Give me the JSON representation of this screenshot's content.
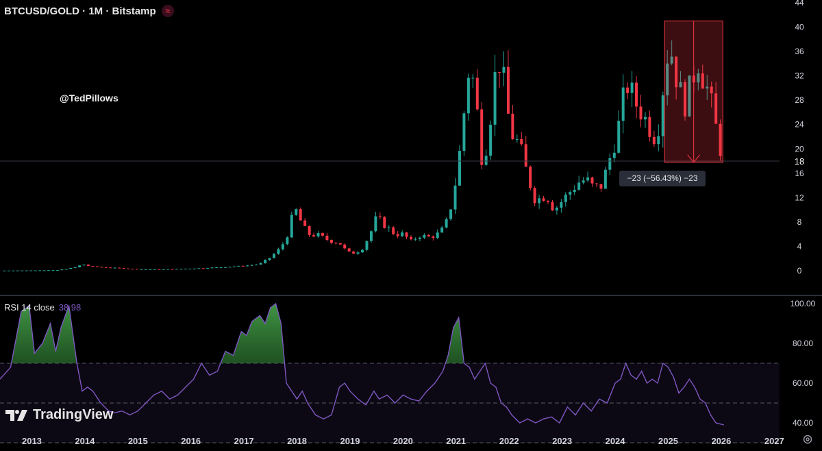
{
  "header": {
    "title": "BTCUSD/GOLD · 1M · Bitstamp",
    "indicator_icon": "wave-icon",
    "accent_color": "#f23645"
  },
  "watermark": {
    "handle": "@TedPillows",
    "brand": "TradingView"
  },
  "measure": {
    "label": "−23 (−56.43%) −23"
  },
  "rsi": {
    "title": "RSI 14 close",
    "value": "38.98",
    "line_color": "#7e57c2"
  },
  "chart_data": [
    {
      "type": "candlestick",
      "title": "BTCUSD/GOLD · 1M · Bitstamp",
      "x_range": [
        2012.4,
        2027.9
      ],
      "ylim": [
        -1,
        44
      ],
      "y_ticks": [
        "0",
        "4",
        "8",
        "12",
        "16",
        "20",
        "24",
        "28",
        "32",
        "36",
        "40",
        "44"
      ],
      "last_price_label": "18",
      "x_ticks": [
        "2013",
        "2014",
        "2015",
        "2016",
        "2017",
        "2018",
        "2019",
        "2020",
        "2021",
        "2022",
        "2023",
        "2024",
        "2025",
        "2026",
        "2027"
      ],
      "colors": {
        "up": "#26a69a",
        "down": "#f23645"
      },
      "anchors": [
        [
          2012.4,
          0.02
        ],
        [
          2013.0,
          0.05
        ],
        [
          2013.5,
          0.1
        ],
        [
          2013.85,
          0.6
        ],
        [
          2013.95,
          1.1
        ],
        [
          2014.1,
          0.7
        ],
        [
          2014.5,
          0.5
        ],
        [
          2015.0,
          0.25
        ],
        [
          2015.5,
          0.25
        ],
        [
          2016.0,
          0.35
        ],
        [
          2016.5,
          0.55
        ],
        [
          2017.0,
          0.8
        ],
        [
          2017.3,
          1.1
        ],
        [
          2017.5,
          2.2
        ],
        [
          2017.7,
          3.8
        ],
        [
          2017.85,
          6.5
        ],
        [
          2017.95,
          10.5
        ],
        [
          2018.05,
          8.5
        ],
        [
          2018.2,
          6.0
        ],
        [
          2018.4,
          5.8
        ],
        [
          2018.6,
          5.0
        ],
        [
          2018.8,
          4.6
        ],
        [
          2018.95,
          3.0
        ],
        [
          2019.1,
          2.9
        ],
        [
          2019.25,
          3.8
        ],
        [
          2019.4,
          6.5
        ],
        [
          2019.5,
          8.8
        ],
        [
          2019.65,
          7.5
        ],
        [
          2019.85,
          6.0
        ],
        [
          2020.0,
          6.0
        ],
        [
          2020.15,
          4.8
        ],
        [
          2020.3,
          5.8
        ],
        [
          2020.5,
          5.5
        ],
        [
          2020.7,
          6.2
        ],
        [
          2020.85,
          8.5
        ],
        [
          2020.95,
          12.5
        ],
        [
          2021.05,
          18.0
        ],
        [
          2021.15,
          26.0
        ],
        [
          2021.25,
          34.0
        ],
        [
          2021.35,
          30.0
        ],
        [
          2021.5,
          17.5
        ],
        [
          2021.6,
          22.0
        ],
        [
          2021.75,
          33.0
        ],
        [
          2021.85,
          35.0
        ],
        [
          2021.95,
          27.0
        ],
        [
          2022.05,
          22.5
        ],
        [
          2022.2,
          20.5
        ],
        [
          2022.35,
          15.5
        ],
        [
          2022.5,
          11.5
        ],
        [
          2022.7,
          12.5
        ],
        [
          2022.85,
          10.0
        ],
        [
          2023.0,
          11.5
        ],
        [
          2023.15,
          13.0
        ],
        [
          2023.3,
          14.5
        ],
        [
          2023.45,
          15.0
        ],
        [
          2023.6,
          13.5
        ],
        [
          2023.75,
          14.0
        ],
        [
          2023.85,
          17.0
        ],
        [
          2023.95,
          20.0
        ],
        [
          2024.05,
          23.0
        ],
        [
          2024.15,
          28.0
        ],
        [
          2024.25,
          31.0
        ],
        [
          2024.35,
          28.0
        ],
        [
          2024.5,
          26.0
        ],
        [
          2024.65,
          23.5
        ],
        [
          2024.75,
          22.0
        ],
        [
          2024.85,
          25.0
        ],
        [
          2024.95,
          35.0
        ],
        [
          2025.05,
          36.5
        ],
        [
          2025.15,
          32.0
        ],
        [
          2025.3,
          27.0
        ],
        [
          2025.45,
          31.0
        ],
        [
          2025.55,
          35.0
        ],
        [
          2025.65,
          32.0
        ],
        [
          2025.75,
          29.5
        ],
        [
          2025.85,
          26.0
        ],
        [
          2025.95,
          21.0
        ],
        [
          2026.05,
          18.0
        ]
      ],
      "measure_range": {
        "x": [
          2024.93,
          2026.03
        ],
        "y": [
          41.0,
          17.8
        ],
        "change": -23,
        "change_pct": -56.43
      }
    },
    {
      "type": "line",
      "title": "RSI 14 close",
      "ylim": [
        28,
        103
      ],
      "y_ticks": [
        "40.00",
        "60.00",
        "80.00",
        "100.00"
      ],
      "bands": {
        "upper": 70,
        "middle": 50,
        "lower": 30
      },
      "x": [
        2012.4,
        2012.6,
        2012.8,
        2012.95,
        2013.05,
        2013.2,
        2013.35,
        2013.45,
        2013.55,
        2013.7,
        2013.85,
        2013.95,
        2014.05,
        2014.15,
        2014.3,
        2014.45,
        2014.55,
        2014.7,
        2014.85,
        2015.0,
        2015.15,
        2015.3,
        2015.45,
        2015.6,
        2015.75,
        2015.9,
        2016.05,
        2016.2,
        2016.35,
        2016.5,
        2016.65,
        2016.8,
        2016.95,
        2017.05,
        2017.15,
        2017.3,
        2017.4,
        2017.5,
        2017.6,
        2017.7,
        2017.8,
        2017.9,
        2018.0,
        2018.1,
        2018.2,
        2018.35,
        2018.5,
        2018.65,
        2018.8,
        2018.9,
        2019.0,
        2019.15,
        2019.3,
        2019.45,
        2019.55,
        2019.7,
        2019.85,
        2020.0,
        2020.15,
        2020.3,
        2020.45,
        2020.6,
        2020.75,
        2020.85,
        2020.95,
        2021.05,
        2021.15,
        2021.25,
        2021.35,
        2021.45,
        2021.55,
        2021.65,
        2021.75,
        2021.85,
        2021.95,
        2022.05,
        2022.2,
        2022.35,
        2022.5,
        2022.65,
        2022.8,
        2022.95,
        2023.1,
        2023.25,
        2023.4,
        2023.55,
        2023.7,
        2023.85,
        2024.0,
        2024.1,
        2024.2,
        2024.3,
        2024.4,
        2024.5,
        2024.6,
        2024.7,
        2024.8,
        2024.9,
        2025.0,
        2025.1,
        2025.2,
        2025.3,
        2025.4,
        2025.5,
        2025.6,
        2025.7,
        2025.8,
        2025.9,
        2026.05
      ],
      "values": [
        62,
        68,
        96,
        99,
        75,
        80,
        90,
        76,
        88,
        99,
        70,
        56,
        58,
        56,
        50,
        46,
        45,
        46,
        44,
        46,
        50,
        54,
        56,
        52,
        54,
        58,
        62,
        70,
        64,
        66,
        76,
        74,
        86,
        84,
        91,
        94,
        90,
        98,
        100,
        90,
        60,
        56,
        52,
        56,
        50,
        44,
        42,
        44,
        58,
        60,
        56,
        52,
        49,
        56,
        52,
        54,
        50,
        54,
        52,
        51,
        56,
        60,
        66,
        74,
        88,
        93,
        70,
        68,
        62,
        66,
        70,
        60,
        58,
        50,
        48,
        44,
        40,
        42,
        40,
        42,
        43,
        40,
        48,
        44,
        50,
        46,
        52,
        50,
        60,
        62,
        70,
        64,
        62,
        66,
        60,
        62,
        60,
        70,
        68,
        63,
        55,
        58,
        62,
        58,
        52,
        50,
        44,
        40,
        38.98
      ]
    }
  ]
}
